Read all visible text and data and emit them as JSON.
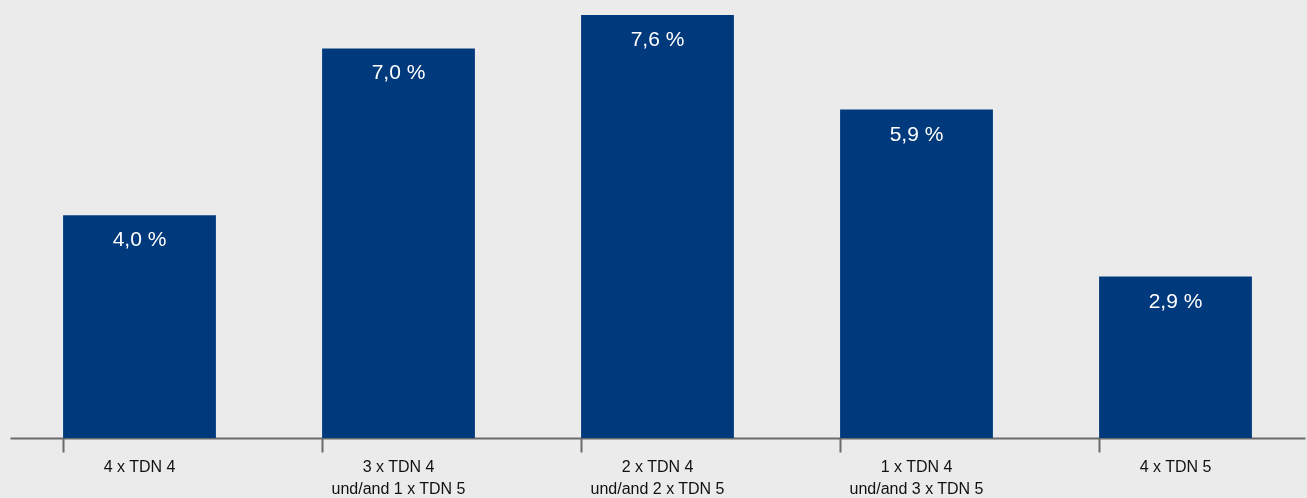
{
  "chart_data": {
    "type": "bar",
    "categories": [
      "4 x TDN 4",
      "3 x TDN 4\nund/and 1 x TDN 5",
      "2 x TDN 4\nund/and 2 x TDN 5",
      "1 x TDN 4\nund/and 3 x TDN 5",
      "4 x TDN 5"
    ],
    "values": [
      4.0,
      7.0,
      7.6,
      5.9,
      2.9
    ],
    "value_labels": [
      "4,0 %",
      "7,0 %",
      "7,6 %",
      "5,9 %",
      "2,9 %"
    ],
    "color": "#003a7d"
  }
}
